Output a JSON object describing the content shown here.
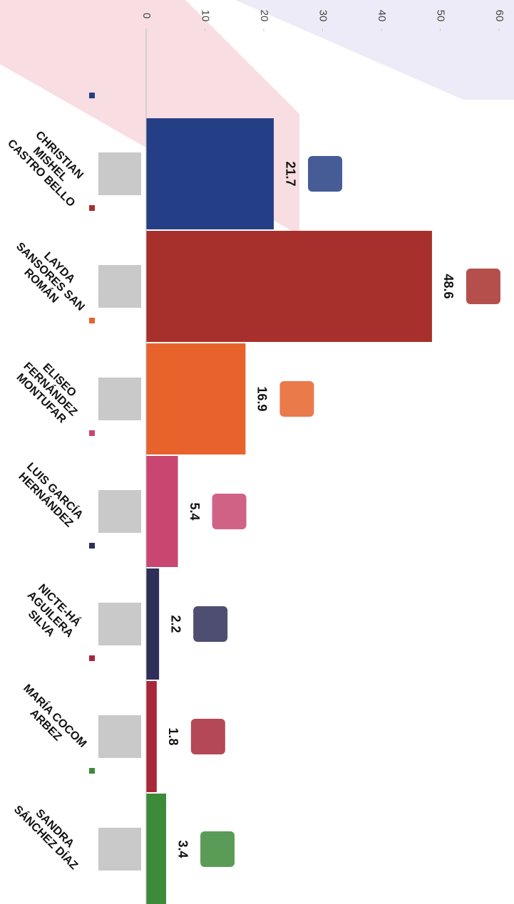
{
  "chart_data": {
    "type": "bar",
    "orientation": "horizontal",
    "categories": [
      "CHRISTIAN MISHEL CASTRO BELLO",
      "LAYDA SANSORES SAN ROMÁN",
      "ELISEO FERNÁNDEZ MONTUFAR",
      "LUIS GARCÍA HERNÁNDEZ",
      "NICTE-HÁ AGUILERA SILVA",
      "MARÍA COCOM ARBEZ",
      "SANDRA SÁNCHEZ DÍAZ"
    ],
    "values": [
      21.7,
      48.6,
      16.9,
      5.4,
      2.2,
      1.8,
      3.4
    ],
    "colors": [
      "#243f85",
      "#a8302c",
      "#e8632c",
      "#c84670",
      "#2e2f58",
      "#a8283a",
      "#3d8b3a"
    ],
    "ylim": [
      0,
      60
    ],
    "yticks": [
      0,
      10,
      20,
      30,
      40,
      50,
      60
    ]
  }
}
